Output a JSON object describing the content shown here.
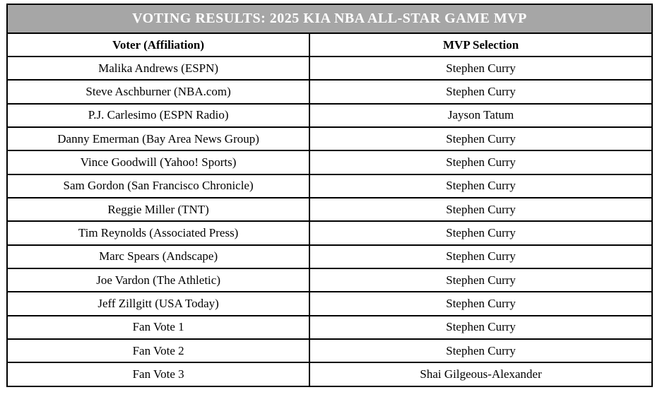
{
  "table": {
    "title": "VOTING RESULTS: 2025 KIA NBA ALL-STAR GAME MVP",
    "columns": [
      "Voter (Affiliation)",
      "MVP Selection"
    ],
    "rows": [
      {
        "voter": "Malika Andrews (ESPN)",
        "selection": "Stephen Curry"
      },
      {
        "voter": "Steve Aschburner (NBA.com)",
        "selection": "Stephen Curry"
      },
      {
        "voter": "P.J. Carlesimo (ESPN Radio)",
        "selection": "Jayson Tatum"
      },
      {
        "voter": "Danny Emerman (Bay Area News Group)",
        "selection": "Stephen Curry"
      },
      {
        "voter": "Vince Goodwill (Yahoo! Sports)",
        "selection": "Stephen Curry"
      },
      {
        "voter": "Sam Gordon (San Francisco Chronicle)",
        "selection": "Stephen Curry"
      },
      {
        "voter": "Reggie Miller (TNT)",
        "selection": "Stephen Curry"
      },
      {
        "voter": "Tim Reynolds (Associated Press)",
        "selection": "Stephen Curry"
      },
      {
        "voter": "Marc Spears (Andscape)",
        "selection": "Stephen Curry"
      },
      {
        "voter": "Joe Vardon (The Athletic)",
        "selection": "Stephen Curry"
      },
      {
        "voter": "Jeff Zillgitt (USA Today)",
        "selection": "Stephen Curry"
      },
      {
        "voter": "Fan Vote 1",
        "selection": "Stephen Curry"
      },
      {
        "voter": "Fan Vote 2",
        "selection": "Stephen Curry"
      },
      {
        "voter": "Fan Vote 3",
        "selection": "Shai Gilgeous-Alexander"
      }
    ],
    "colors": {
      "title_background": "#a6a6a6",
      "title_text": "#ffffff",
      "border": "#000000",
      "body_text": "#000000"
    }
  }
}
